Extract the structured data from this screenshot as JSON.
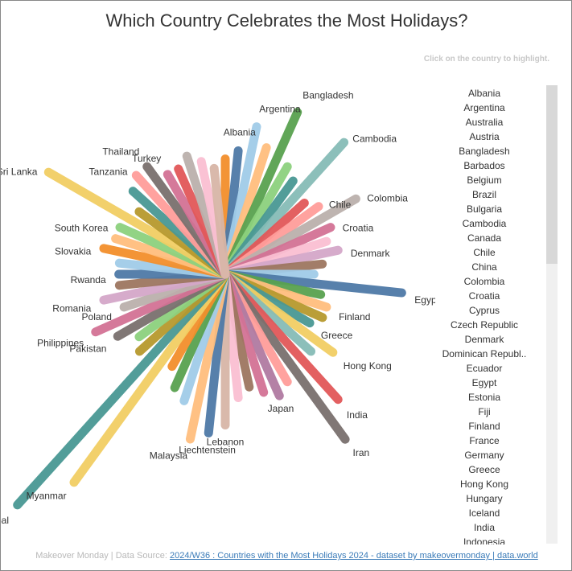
{
  "chart_data": {
    "type": "radial",
    "title": "Which Country Celebrates the Most Holidays?",
    "hint": "Click on the country to highlight.",
    "categories": [
      null,
      "Albania",
      "Argentina",
      null,
      "Bangladesh",
      null,
      null,
      "Cambodia",
      null,
      "Chile",
      "Colombia",
      "Croatia",
      null,
      "Denmark",
      null,
      null,
      "Egypt",
      null,
      "Finland",
      null,
      "Greece",
      "Hong Kong",
      null,
      "India",
      "Iran",
      null,
      null,
      "Japan",
      null,
      null,
      "Lebanon",
      "Liechtenstein",
      "Malaysia",
      null,
      null,
      null,
      "Myanmar",
      "Nepal",
      null,
      null,
      "Pakistan",
      "Philippines",
      "Poland",
      "Romania",
      null,
      "Rwanda",
      null,
      "Slovakia",
      null,
      "South Korea",
      "Sri Lanka",
      null,
      null,
      "Tanzania",
      "Thailand",
      "Turkey",
      null,
      null,
      null,
      null
    ],
    "values": [
      13,
      14,
      17,
      15,
      20,
      14,
      13,
      20,
      12,
      13,
      17,
      13,
      12,
      13,
      11,
      10,
      20,
      11,
      12,
      12,
      11,
      15,
      13,
      19,
      23,
      14,
      15,
      14,
      13,
      14,
      17,
      18,
      19,
      15,
      14,
      12,
      29,
      35,
      13,
      12,
      14,
      16,
      12,
      14,
      12,
      12,
      12,
      14,
      13,
      13,
      23,
      12,
      14,
      15,
      15,
      13,
      13,
      14,
      13,
      12
    ],
    "colors": [
      "#f28e2b",
      "#4e79a7",
      "#a0cbe8",
      "#ffbe7d",
      "#59a14f",
      "#8cd17d",
      "#499894",
      "#86bcb6",
      "#e15759",
      "#ff9d9a",
      "#bab0ac",
      "#d37295",
      "#fabfd2",
      "#d4a6c8",
      "#9d7660",
      "#a0cbe8",
      "#4e79a7",
      "#59a14f",
      "#ffbe7d",
      "#b6992d",
      "#499894",
      "#f1ce63",
      "#86bcb6",
      "#e15759",
      "#79706e",
      "#ff9d9a",
      "#b07aa1",
      "#d37295",
      "#9d7660",
      "#fabfd2",
      "#d7b5a6",
      "#4e79a7",
      "#ffbe7d",
      "#a0cbe8",
      "#59a14f",
      "#f28e2b",
      "#f1ce63",
      "#499894",
      "#b6992d",
      "#8cd17d",
      "#79706e",
      "#d37295",
      "#bab0ac",
      "#d4a6c8",
      "#9d7660",
      "#4e79a7",
      "#a0cbe8",
      "#f28e2b",
      "#ffbe7d",
      "#8cd17d",
      "#f1ce63",
      "#b6992d",
      "#499894",
      "#ff9d9a",
      "#79706e",
      "#d37295",
      "#e15759",
      "#bab0ac",
      "#fabfd2",
      "#d7b5a6"
    ]
  },
  "country_list": [
    "Albania",
    "Argentina",
    "Australia",
    "Austria",
    "Bangladesh",
    "Barbados",
    "Belgium",
    "Brazil",
    "Bulgaria",
    "Cambodia",
    "Canada",
    "Chile",
    "China",
    "Colombia",
    "Croatia",
    "Cyprus",
    "Czech Republic",
    "Denmark",
    "Dominican Republ..",
    "Ecuador",
    "Egypt",
    "Estonia",
    "Fiji",
    "Finland",
    "France",
    "Germany",
    "Greece",
    "Hong Kong",
    "Hungary",
    "Iceland",
    "India",
    "Indonesia"
  ],
  "footer": {
    "prefix": "Makeover Monday | Data Source: ",
    "link": "2024/W36 : Countries with the Most Holidays 2024 - dataset by makeovermonday | data.world"
  }
}
